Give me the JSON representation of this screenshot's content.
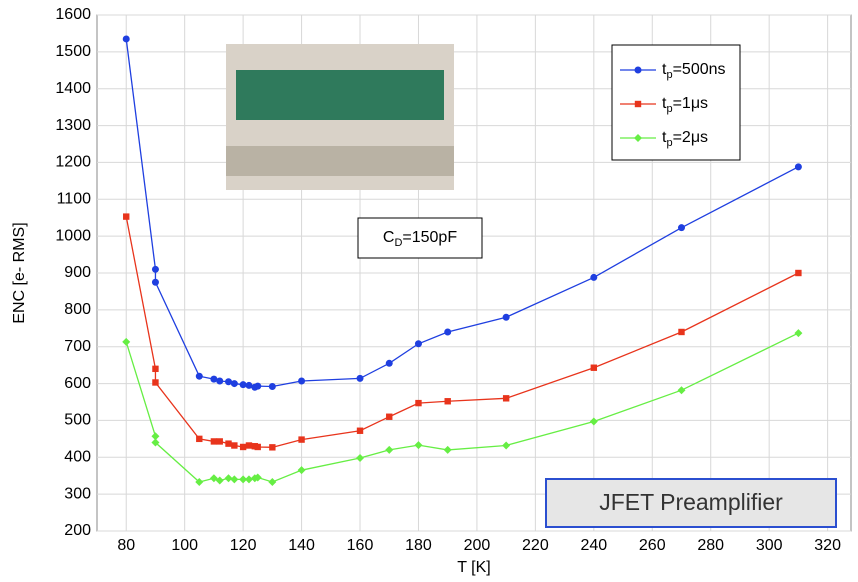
{
  "chart_data": {
    "type": "line",
    "x_label": "T [K]",
    "y_label": "ENC [e- RMS]",
    "annotations": [
      "CD=150pF",
      "JFET Preamplifier"
    ],
    "x": [
      80,
      90,
      90,
      105,
      110,
      112,
      115,
      117,
      120,
      122,
      124,
      125,
      130,
      140,
      160,
      170,
      180,
      190,
      210,
      240,
      270,
      310
    ],
    "series": [
      {
        "name": "tp=500ns",
        "color": "#1f3fe0",
        "marker": "circle",
        "values": [
          1535,
          910,
          875,
          620,
          612,
          607,
          605,
          600,
          597,
          595,
          590,
          593,
          592,
          607,
          614,
          655,
          708,
          740,
          780,
          888,
          1023,
          1188
        ]
      },
      {
        "name": "tp=1μs",
        "color": "#e8341c",
        "marker": "square",
        "values": [
          1053,
          640,
          603,
          450,
          443,
          443,
          437,
          432,
          428,
          432,
          430,
          428,
          427,
          448,
          472,
          510,
          547,
          552,
          560,
          643,
          740,
          900
        ]
      },
      {
        "name": "tp=2μs",
        "color": "#66ee44",
        "marker": "diamond",
        "values": [
          713,
          457,
          440,
          333,
          343,
          337,
          343,
          340,
          340,
          340,
          343,
          345,
          333,
          365,
          398,
          420,
          433,
          420,
          432,
          497,
          582,
          737
        ]
      }
    ],
    "xlim": [
      70,
      328
    ],
    "xticks": [
      80,
      100,
      120,
      140,
      160,
      180,
      200,
      220,
      240,
      260,
      280,
      300,
      320
    ],
    "ylim": [
      200,
      1600
    ],
    "yticks": [
      200,
      300,
      400,
      500,
      600,
      700,
      800,
      900,
      1000,
      1100,
      1200,
      1300,
      1400,
      1500,
      1600
    ],
    "grid": true,
    "legend": "upper right"
  }
}
